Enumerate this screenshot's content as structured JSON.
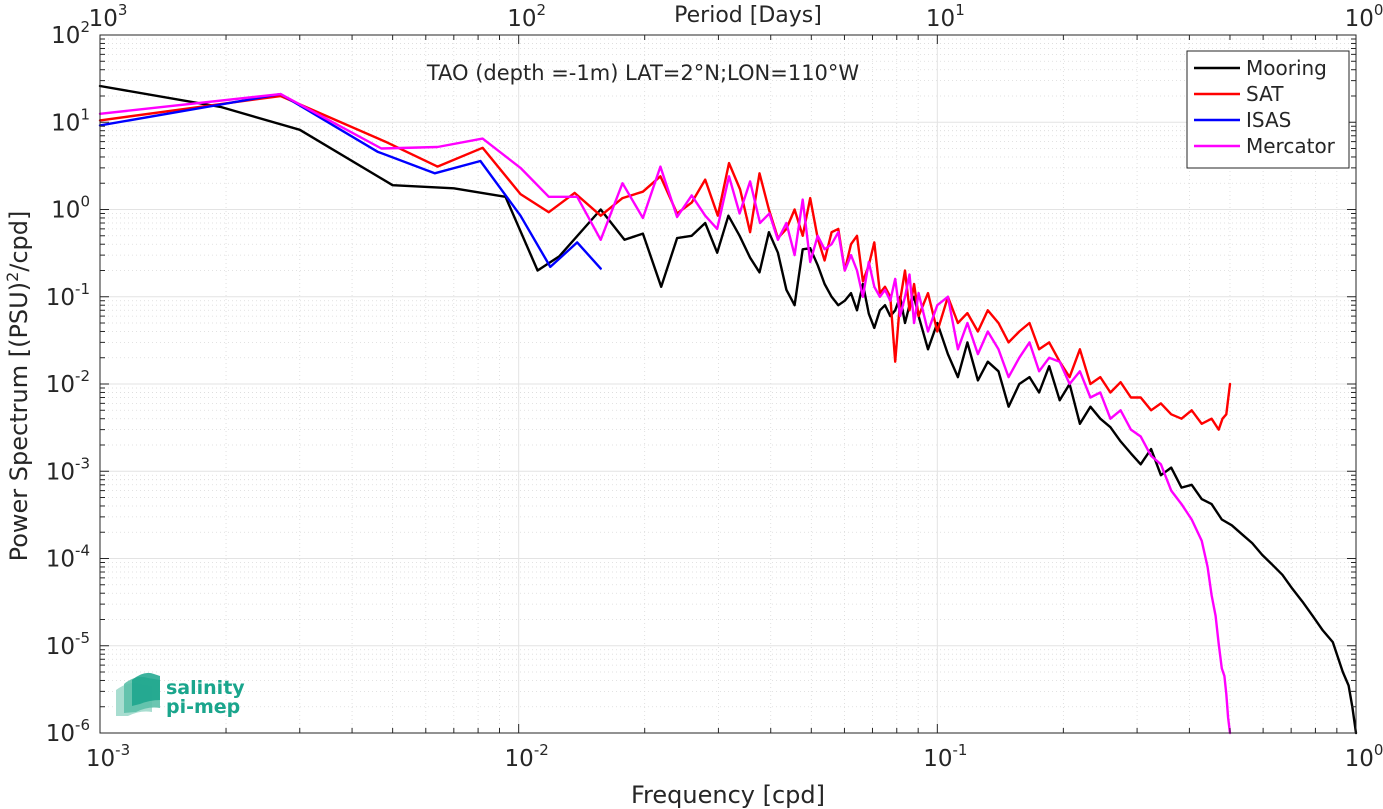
{
  "chart_data": {
    "type": "line",
    "title": "TAO (depth =-1m) LAT=2°N;LON=110°W",
    "xlabel": "Frequency [cpd]",
    "ylabel": "Power Spectrum [(PSU)²/cpd]",
    "x2label": "Period [Days]",
    "xscale": "log",
    "yscale": "log",
    "xlim": [
      0.001,
      1
    ],
    "ylim": [
      1e-06,
      100
    ],
    "grid": true,
    "legend_position": "top-right",
    "x_ticks": [
      {
        "base": "10",
        "exp": "-3"
      },
      {
        "base": "10",
        "exp": "-2"
      },
      {
        "base": "10",
        "exp": "-1"
      },
      {
        "base": "10",
        "exp": "0"
      }
    ],
    "x2_ticks": [
      {
        "base": "10",
        "exp": "3"
      },
      {
        "base": "10",
        "exp": "2"
      },
      {
        "base": "10",
        "exp": "1"
      },
      {
        "base": "10",
        "exp": "0"
      }
    ],
    "y_ticks": [
      {
        "base": "10",
        "exp": "2"
      },
      {
        "base": "10",
        "exp": "1"
      },
      {
        "base": "10",
        "exp": "0"
      },
      {
        "base": "10",
        "exp": "-1"
      },
      {
        "base": "10",
        "exp": "-2"
      },
      {
        "base": "10",
        "exp": "-3"
      },
      {
        "base": "10",
        "exp": "-4"
      },
      {
        "base": "10",
        "exp": "-5"
      },
      {
        "base": "10",
        "exp": "-6"
      }
    ],
    "series": [
      {
        "name": "Mooring",
        "color": "#000000",
        "x": [
          0.001,
          0.00194,
          0.003,
          0.005,
          0.007,
          0.0093,
          0.0111,
          0.0125,
          0.0157,
          0.0179,
          0.0198,
          0.0219,
          0.0239,
          0.0259,
          0.0279,
          0.0298,
          0.0317,
          0.0337,
          0.0357,
          0.0376,
          0.0396,
          0.0416,
          0.0436,
          0.0456,
          0.0477,
          0.0497,
          0.0518,
          0.0538,
          0.0559,
          0.058,
          0.0601,
          0.0622,
          0.0643,
          0.0664,
          0.0686,
          0.0707,
          0.0729,
          0.075,
          0.0772,
          0.0793,
          0.0815,
          0.0837,
          0.0858,
          0.088,
          0.0902,
          0.095,
          0.1,
          0.106,
          0.112,
          0.118,
          0.125,
          0.132,
          0.14,
          0.148,
          0.157,
          0.166,
          0.175,
          0.185,
          0.196,
          0.207,
          0.219,
          0.232,
          0.245,
          0.259,
          0.274,
          0.29,
          0.306,
          0.324,
          0.342,
          0.362,
          0.383,
          0.405,
          0.428,
          0.452,
          0.478,
          0.505,
          0.534,
          0.565,
          0.597,
          0.631,
          0.667,
          0.705,
          0.745,
          0.788,
          0.833,
          0.88,
          0.93,
          0.96,
          0.98,
          1.0
        ],
        "y": [
          26,
          15,
          8.2,
          1.9,
          1.75,
          1.4,
          0.2,
          0.29,
          1.0,
          0.45,
          0.53,
          0.13,
          0.47,
          0.5,
          0.7,
          0.32,
          0.85,
          0.5,
          0.28,
          0.19,
          0.55,
          0.32,
          0.12,
          0.08,
          0.35,
          0.36,
          0.23,
          0.14,
          0.1,
          0.08,
          0.09,
          0.11,
          0.07,
          0.14,
          0.064,
          0.044,
          0.07,
          0.08,
          0.06,
          0.07,
          0.1,
          0.05,
          0.08,
          0.1,
          0.06,
          0.025,
          0.05,
          0.022,
          0.012,
          0.03,
          0.011,
          0.018,
          0.014,
          0.0055,
          0.01,
          0.012,
          0.008,
          0.016,
          0.0065,
          0.01,
          0.0035,
          0.0055,
          0.004,
          0.0032,
          0.0022,
          0.0016,
          0.0012,
          0.0018,
          0.0009,
          0.0011,
          0.00065,
          0.0007,
          0.00048,
          0.00042,
          0.00028,
          0.00024,
          0.00019,
          0.00015,
          0.00011,
          8.5e-05,
          6.5e-05,
          4.5e-05,
          3.2e-05,
          2.2e-05,
          1.5e-05,
          1.1e-05,
          5e-06,
          3.5e-06,
          2e-06,
          1e-06
        ]
      },
      {
        "name": "SAT",
        "color": "#ff0000",
        "x": [
          0.001,
          0.0027,
          0.0048,
          0.0064,
          0.0082,
          0.0101,
          0.0118,
          0.0136,
          0.0157,
          0.0177,
          0.0198,
          0.0218,
          0.0239,
          0.0259,
          0.0279,
          0.0299,
          0.0318,
          0.0338,
          0.0357,
          0.0376,
          0.0396,
          0.0416,
          0.0436,
          0.0456,
          0.0477,
          0.0497,
          0.0518,
          0.0538,
          0.0559,
          0.058,
          0.0601,
          0.0622,
          0.0643,
          0.0664,
          0.0686,
          0.0707,
          0.0729,
          0.075,
          0.0772,
          0.0793,
          0.0815,
          0.0837,
          0.0858,
          0.088,
          0.0902,
          0.095,
          0.1,
          0.106,
          0.112,
          0.118,
          0.125,
          0.132,
          0.14,
          0.148,
          0.157,
          0.166,
          0.175,
          0.185,
          0.196,
          0.207,
          0.219,
          0.232,
          0.245,
          0.259,
          0.274,
          0.29,
          0.306,
          0.324,
          0.342,
          0.362,
          0.383,
          0.405,
          0.428,
          0.452,
          0.47,
          0.48,
          0.49,
          0.5
        ],
        "y": [
          10.5,
          20,
          6.0,
          3.1,
          5.1,
          1.5,
          0.93,
          1.55,
          0.85,
          1.35,
          1.6,
          2.4,
          0.9,
          1.2,
          2.2,
          0.85,
          3.4,
          1.7,
          0.55,
          2.6,
          1.0,
          0.47,
          0.6,
          1.0,
          0.5,
          1.35,
          0.47,
          0.26,
          0.55,
          0.6,
          0.2,
          0.4,
          0.5,
          0.15,
          0.23,
          0.42,
          0.11,
          0.13,
          0.1,
          0.018,
          0.09,
          0.2,
          0.07,
          0.14,
          0.06,
          0.11,
          0.04,
          0.1,
          0.05,
          0.065,
          0.04,
          0.07,
          0.05,
          0.03,
          0.04,
          0.05,
          0.025,
          0.03,
          0.018,
          0.012,
          0.025,
          0.01,
          0.012,
          0.008,
          0.0105,
          0.007,
          0.007,
          0.005,
          0.006,
          0.0045,
          0.004,
          0.005,
          0.0035,
          0.004,
          0.003,
          0.004,
          0.0045,
          0.01
        ]
      },
      {
        "name": "ISAS",
        "color": "#0000ff",
        "x": [
          0.001,
          0.0027,
          0.0046,
          0.0063,
          0.0081,
          0.0101,
          0.0119,
          0.0138,
          0.0157
        ],
        "y": [
          9.2,
          21,
          4.6,
          2.6,
          3.6,
          0.85,
          0.22,
          0.42,
          0.21
        ]
      },
      {
        "name": "Mercator",
        "color": "#ff00ff",
        "x": [
          0.001,
          0.0027,
          0.0047,
          0.0064,
          0.0082,
          0.0101,
          0.0118,
          0.0138,
          0.0157,
          0.0177,
          0.0198,
          0.0218,
          0.0239,
          0.0259,
          0.0279,
          0.0298,
          0.0318,
          0.0337,
          0.0357,
          0.0377,
          0.0397,
          0.0416,
          0.0436,
          0.0456,
          0.0477,
          0.0497,
          0.0518,
          0.0538,
          0.0559,
          0.058,
          0.0601,
          0.0622,
          0.0643,
          0.0664,
          0.0686,
          0.0707,
          0.0729,
          0.075,
          0.0772,
          0.0793,
          0.0815,
          0.0837,
          0.0858,
          0.088,
          0.0902,
          0.095,
          0.1,
          0.106,
          0.112,
          0.118,
          0.125,
          0.132,
          0.14,
          0.148,
          0.157,
          0.166,
          0.175,
          0.185,
          0.196,
          0.207,
          0.219,
          0.232,
          0.245,
          0.259,
          0.274,
          0.29,
          0.306,
          0.324,
          0.342,
          0.362,
          0.383,
          0.405,
          0.428,
          0.442,
          0.452,
          0.462,
          0.47,
          0.478,
          0.485,
          0.49,
          0.495,
          0.5
        ],
        "y": [
          12.5,
          21,
          5.0,
          5.2,
          6.5,
          3.0,
          1.4,
          1.4,
          0.45,
          2.0,
          0.8,
          3.1,
          0.82,
          1.45,
          0.85,
          0.6,
          2.4,
          0.9,
          2.1,
          0.7,
          0.9,
          0.45,
          0.7,
          0.3,
          1.3,
          0.25,
          0.5,
          0.35,
          0.4,
          0.55,
          0.2,
          0.3,
          0.2,
          0.1,
          0.25,
          0.13,
          0.1,
          0.12,
          0.09,
          0.16,
          0.06,
          0.1,
          0.18,
          0.05,
          0.11,
          0.04,
          0.08,
          0.1,
          0.025,
          0.05,
          0.022,
          0.04,
          0.025,
          0.012,
          0.02,
          0.03,
          0.014,
          0.02,
          0.018,
          0.01,
          0.014,
          0.007,
          0.008,
          0.004,
          0.005,
          0.003,
          0.0025,
          0.0015,
          0.0012,
          0.0006,
          0.00042,
          0.00028,
          0.00016,
          8e-05,
          3.8e-05,
          2.2e-05,
          1.05e-05,
          5.5e-06,
          4.5e-06,
          2.8e-06,
          1.5e-06,
          1e-06
        ]
      }
    ]
  },
  "logo": {
    "line1": "salinity",
    "line2": "pi-mep",
    "color": "#1aa58c"
  }
}
